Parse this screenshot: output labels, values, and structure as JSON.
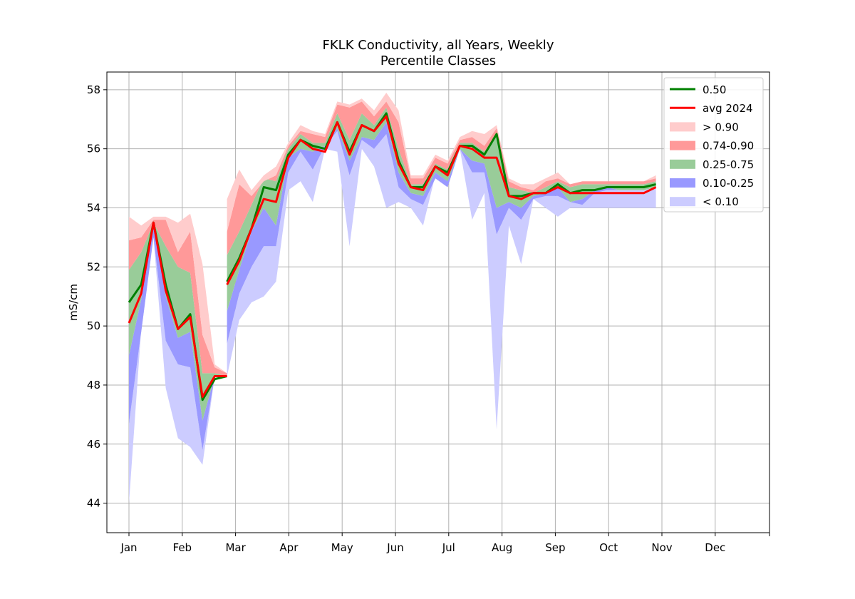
{
  "chart_data": {
    "type": "area",
    "title": "FKLK Conductivity, all Years, Weekly",
    "subtitle": "Percentile Classes",
    "xlabel": "",
    "ylabel": "mS/cm",
    "ylim": [
      43,
      58.6
    ],
    "yticks": [
      44,
      46,
      48,
      50,
      52,
      54,
      56,
      58
    ],
    "xticks": [
      "Jan",
      "Feb",
      "Mar",
      "Apr",
      "May",
      "Jun",
      "Jul",
      "Aug",
      "Sep",
      "Oct",
      "Nov",
      "Dec"
    ],
    "grid": true,
    "legend_position": "top-right",
    "legend": [
      {
        "label": "0.50",
        "kind": "line",
        "color": "#008000"
      },
      {
        "label": "avg 2024",
        "kind": "line",
        "color": "#ff0000"
      },
      {
        "label": "> 0.90",
        "kind": "patch",
        "color": "#ffcccc"
      },
      {
        "label": "0.74-0.90",
        "kind": "patch",
        "color": "#ff9999"
      },
      {
        "label": "0.25-0.75",
        "kind": "patch",
        "color": "#99cc99"
      },
      {
        "label": "0.10-0.25",
        "kind": "patch",
        "color": "#9999ff"
      },
      {
        "label": "< 0.10",
        "kind": "patch",
        "color": "#ccccff"
      }
    ],
    "segments": [
      {
        "week": [
          1,
          2,
          3,
          4,
          5,
          6,
          7,
          8,
          9
        ],
        "min": [
          44.0,
          49.9,
          53.0,
          47.9,
          46.2,
          45.9,
          45.3,
          48.3,
          48.3
        ],
        "p10": [
          46.7,
          49.8,
          53.0,
          49.5,
          48.7,
          48.6,
          45.8,
          48.3,
          48.3
        ],
        "p25": [
          49.0,
          50.9,
          53.4,
          51.0,
          49.6,
          49.8,
          46.8,
          48.3,
          48.3
        ],
        "p50": [
          50.8,
          51.4,
          53.5,
          51.4,
          49.9,
          50.4,
          47.5,
          48.2,
          48.3
        ],
        "p75": [
          51.9,
          52.5,
          53.5,
          52.7,
          52.0,
          51.8,
          48.4,
          48.4,
          48.3
        ],
        "p90": [
          52.9,
          53.0,
          53.6,
          53.6,
          52.5,
          53.2,
          49.7,
          48.6,
          48.4
        ],
        "max": [
          53.7,
          53.4,
          53.7,
          53.7,
          53.5,
          53.8,
          52.1,
          48.7,
          48.4
        ],
        "avg": [
          50.1,
          51.1,
          53.5,
          51.2,
          49.9,
          50.3,
          47.6,
          48.3,
          48.3
        ]
      },
      {
        "week": [
          9,
          10,
          11,
          12,
          13,
          14,
          15,
          16,
          17,
          18,
          19,
          20,
          21,
          22,
          23,
          24,
          25,
          26,
          27,
          28,
          29,
          30,
          31,
          32,
          33,
          34,
          35,
          36,
          37,
          38,
          39,
          40,
          41,
          42,
          43,
          44
        ],
        "min": [
          48.3,
          50.2,
          50.8,
          51.0,
          51.5,
          54.6,
          54.9,
          54.2,
          56.0,
          55.9,
          52.7,
          56.0,
          55.4,
          54.0,
          54.2,
          54.0,
          53.4,
          55.1,
          55.0,
          56.0,
          53.6,
          54.5,
          46.5,
          53.4,
          52.1,
          54.3,
          54.0,
          53.7,
          54.0,
          54.0,
          54.0,
          54.0,
          54.0,
          54.0,
          54.0,
          54.0
        ],
        "p10": [
          49.4,
          51.1,
          52.0,
          52.7,
          52.7,
          55.2,
          55.9,
          55.3,
          56.1,
          56.6,
          55.1,
          56.3,
          56.0,
          56.5,
          54.7,
          54.3,
          54.1,
          55.0,
          54.7,
          56.0,
          55.2,
          55.2,
          53.1,
          54.0,
          53.6,
          54.3,
          54.4,
          54.4,
          54.2,
          54.1,
          54.5,
          54.6,
          54.6,
          54.6,
          54.6,
          54.7
        ],
        "p25": [
          50.5,
          51.9,
          53.2,
          54.0,
          53.4,
          55.7,
          56.0,
          55.9,
          56.1,
          56.7,
          55.6,
          56.4,
          56.3,
          56.9,
          55.2,
          54.5,
          54.4,
          55.2,
          54.9,
          56.0,
          55.6,
          55.5,
          54.0,
          54.2,
          54.0,
          54.4,
          54.5,
          54.7,
          54.2,
          54.3,
          54.6,
          54.7,
          54.6,
          54.6,
          54.6,
          54.7
        ],
        "p50": [
          51.5,
          52.3,
          53.3,
          54.7,
          54.6,
          55.8,
          56.3,
          56.1,
          56.0,
          56.9,
          55.9,
          56.8,
          56.6,
          57.2,
          55.6,
          54.7,
          54.7,
          55.4,
          55.2,
          56.1,
          56.1,
          55.8,
          56.5,
          54.4,
          54.4,
          54.5,
          54.5,
          54.8,
          54.5,
          54.6,
          54.6,
          54.7,
          54.7,
          54.7,
          54.7,
          54.8
        ],
        "p75": [
          52.4,
          53.2,
          54.1,
          55.0,
          54.9,
          56.0,
          56.5,
          56.2,
          56.2,
          57.2,
          56.3,
          57.2,
          56.8,
          57.4,
          56.0,
          54.8,
          54.8,
          55.5,
          55.3,
          56.2,
          56.2,
          55.9,
          56.5,
          54.7,
          54.6,
          54.5,
          54.7,
          54.9,
          54.7,
          54.8,
          54.8,
          54.8,
          54.8,
          54.8,
          54.8,
          54.9
        ],
        "p90": [
          53.2,
          54.8,
          54.4,
          54.9,
          55.1,
          56.1,
          56.6,
          56.5,
          56.4,
          57.5,
          57.4,
          57.6,
          57.1,
          57.6,
          56.9,
          55.0,
          55.0,
          55.7,
          55.5,
          56.3,
          56.4,
          56.1,
          56.7,
          54.9,
          54.7,
          54.6,
          54.9,
          55.0,
          54.8,
          54.9,
          54.9,
          54.9,
          54.9,
          54.9,
          54.9,
          55.0
        ],
        "max": [
          54.3,
          55.3,
          54.6,
          55.1,
          55.4,
          56.2,
          56.8,
          56.6,
          56.5,
          57.6,
          57.5,
          57.7,
          57.3,
          57.9,
          57.3,
          55.1,
          55.1,
          55.8,
          55.6,
          56.4,
          56.6,
          56.5,
          56.8,
          55.0,
          54.8,
          54.8,
          55.0,
          55.2,
          54.8,
          54.9,
          54.9,
          54.9,
          54.9,
          54.9,
          54.9,
          55.1
        ],
        "avg": [
          51.4,
          52.2,
          53.3,
          54.3,
          54.2,
          55.7,
          56.3,
          56.0,
          55.9,
          56.9,
          55.8,
          56.8,
          56.6,
          57.1,
          55.5,
          54.7,
          54.6,
          55.4,
          55.1,
          56.1,
          56.0,
          55.7,
          55.7,
          54.4,
          54.3,
          54.5,
          54.5,
          54.7,
          54.5,
          54.5,
          54.5,
          54.5,
          54.5,
          54.5,
          54.5,
          54.7
        ]
      }
    ]
  }
}
